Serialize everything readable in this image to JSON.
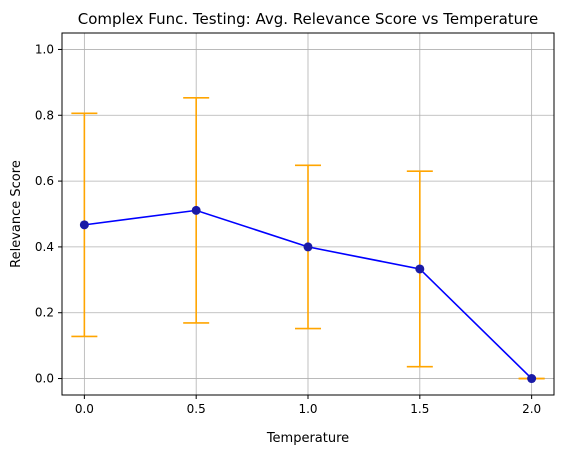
{
  "chart_data": {
    "type": "line",
    "title": "Complex Func. Testing: Avg. Relevance Score vs Temperature",
    "xlabel": "Temperature",
    "ylabel": "Relevance Score",
    "x": [
      0.0,
      0.5,
      1.0,
      1.5,
      2.0
    ],
    "x_tick_labels": [
      "0.0",
      "0.5",
      "1.0",
      "1.5",
      "2.0"
    ],
    "y_tick_labels": [
      "0.0",
      "0.2",
      "0.4",
      "0.6",
      "0.8",
      "1.0"
    ],
    "y_ticks": [
      0.0,
      0.2,
      0.4,
      0.6,
      0.8,
      1.0
    ],
    "xlim": [
      -0.1,
      2.1
    ],
    "ylim": [
      -0.05,
      1.05
    ],
    "grid": true,
    "series": [
      {
        "values": [
          0.467,
          0.511,
          0.4,
          0.333,
          0.0
        ],
        "error_lower": [
          0.128,
          0.169,
          0.152,
          0.036,
          0.0
        ],
        "error_upper": [
          0.806,
          0.853,
          0.648,
          0.63,
          0.0
        ],
        "line_color": "#0000ff",
        "marker_color": "#1a1aa6",
        "errorbar_color": "#ffa500"
      }
    ]
  }
}
